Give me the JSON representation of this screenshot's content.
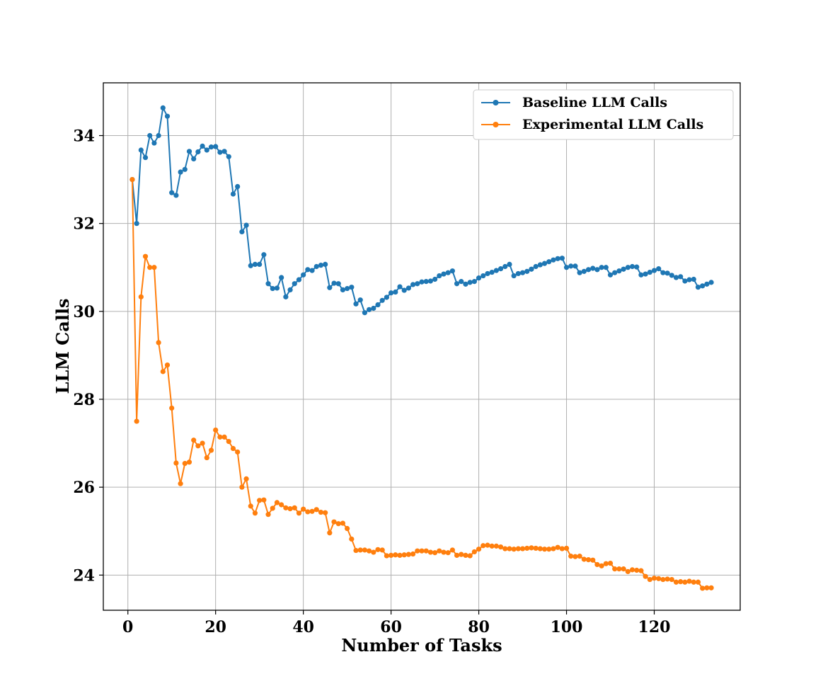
{
  "chart_data": {
    "type": "line",
    "title": "",
    "xlabel": "Number of Tasks",
    "ylabel": "LLM Calls",
    "xlim": [
      -5.6,
      139.6
    ],
    "ylim": [
      23.2,
      35.2
    ],
    "xticks": [
      0,
      20,
      40,
      60,
      80,
      100,
      120
    ],
    "yticks": [
      24,
      26,
      28,
      30,
      32,
      34
    ],
    "xtick_labels": [
      "0",
      "20",
      "40",
      "60",
      "80",
      "100",
      "120"
    ],
    "ytick_labels": [
      "24",
      "26",
      "28",
      "30",
      "32",
      "34"
    ],
    "grid": true,
    "legend_position": "top-right",
    "series": [
      {
        "name": "Baseline LLM Calls",
        "color": "#1f77b4",
        "x": [
          1,
          2,
          3,
          4,
          5,
          6,
          7,
          8,
          9,
          10,
          11,
          12,
          13,
          14,
          15,
          16,
          17,
          18,
          19,
          20,
          21,
          22,
          23,
          24,
          25,
          26,
          27,
          28,
          29,
          30,
          31,
          32,
          33,
          34,
          35,
          36,
          37,
          38,
          39,
          40,
          41,
          42,
          43,
          44,
          45,
          46,
          47,
          48,
          49,
          50,
          51,
          52,
          53,
          54,
          55,
          56,
          57,
          58,
          59,
          60,
          61,
          62,
          63,
          64,
          65,
          66,
          67,
          68,
          69,
          70,
          71,
          72,
          73,
          74,
          75,
          76,
          77,
          78,
          79,
          80,
          81,
          82,
          83,
          84,
          85,
          86,
          87,
          88,
          89,
          90,
          91,
          92,
          93,
          94,
          95,
          96,
          97,
          98,
          99,
          100,
          101,
          102,
          103,
          104,
          105,
          106,
          107,
          108,
          109,
          110,
          111,
          112,
          113,
          114,
          115,
          116,
          117,
          118,
          119,
          120,
          121,
          122,
          123,
          124,
          125,
          126,
          127,
          128,
          129,
          130,
          131,
          132,
          133
        ],
        "values": [
          33.0,
          32.0,
          33.67,
          33.5,
          34.0,
          33.83,
          34.0,
          34.63,
          34.44,
          32.7,
          32.64,
          33.17,
          33.23,
          33.64,
          33.47,
          33.63,
          33.76,
          33.67,
          33.74,
          33.75,
          33.62,
          33.64,
          33.52,
          32.67,
          32.84,
          31.81,
          31.96,
          31.04,
          31.07,
          31.07,
          31.29,
          30.63,
          30.52,
          30.53,
          30.77,
          30.33,
          30.49,
          30.63,
          30.72,
          30.83,
          30.95,
          30.93,
          31.02,
          31.05,
          31.07,
          30.54,
          30.64,
          30.63,
          30.49,
          30.52,
          30.55,
          30.17,
          30.26,
          29.97,
          30.04,
          30.07,
          30.15,
          30.25,
          30.32,
          30.42,
          30.44,
          30.56,
          30.48,
          30.53,
          30.61,
          30.63,
          30.67,
          30.68,
          30.69,
          30.73,
          30.81,
          30.85,
          30.88,
          30.92,
          30.63,
          30.68,
          30.62,
          30.66,
          30.68,
          30.76,
          30.81,
          30.86,
          30.89,
          30.93,
          30.97,
          31.02,
          31.07,
          30.81,
          30.86,
          30.88,
          30.91,
          30.96,
          31.02,
          31.06,
          31.09,
          31.13,
          31.17,
          31.2,
          31.21,
          31.0,
          31.03,
          31.03,
          30.88,
          30.91,
          30.95,
          30.98,
          30.95,
          31.0,
          31.0,
          30.83,
          30.88,
          30.92,
          30.96,
          31.0,
          31.02,
          31.01,
          30.83,
          30.85,
          30.89,
          30.93,
          30.97,
          30.88,
          30.87,
          30.82,
          30.77,
          30.79,
          30.69,
          30.72,
          30.73,
          30.55,
          30.58,
          30.62,
          30.66
        ]
      },
      {
        "name": "Experimental LLM Calls",
        "color": "#ff7f0e",
        "x": [
          1,
          2,
          3,
          4,
          5,
          6,
          7,
          8,
          9,
          10,
          11,
          12,
          13,
          14,
          15,
          16,
          17,
          18,
          19,
          20,
          21,
          22,
          23,
          24,
          25,
          26,
          27,
          28,
          29,
          30,
          31,
          32,
          33,
          34,
          35,
          36,
          37,
          38,
          39,
          40,
          41,
          42,
          43,
          44,
          45,
          46,
          47,
          48,
          49,
          50,
          51,
          52,
          53,
          54,
          55,
          56,
          57,
          58,
          59,
          60,
          61,
          62,
          63,
          64,
          65,
          66,
          67,
          68,
          69,
          70,
          71,
          72,
          73,
          74,
          75,
          76,
          77,
          78,
          79,
          80,
          81,
          82,
          83,
          84,
          85,
          86,
          87,
          88,
          89,
          90,
          91,
          92,
          93,
          94,
          95,
          96,
          97,
          98,
          99,
          100,
          101,
          102,
          103,
          104,
          105,
          106,
          107,
          108,
          109,
          110,
          111,
          112,
          113,
          114,
          115,
          116,
          117,
          118,
          119,
          120,
          121,
          122,
          123,
          124,
          125,
          126,
          127,
          128,
          129,
          130,
          131,
          132,
          133
        ],
        "values": [
          33.0,
          27.5,
          30.33,
          31.25,
          31.0,
          31.0,
          29.29,
          28.63,
          28.78,
          27.8,
          26.55,
          26.08,
          26.54,
          26.57,
          27.07,
          26.94,
          27.0,
          26.67,
          26.84,
          27.3,
          27.14,
          27.14,
          27.04,
          26.88,
          26.8,
          26.0,
          26.19,
          25.57,
          25.41,
          25.7,
          25.71,
          25.38,
          25.52,
          25.65,
          25.6,
          25.53,
          25.51,
          25.53,
          25.41,
          25.5,
          25.44,
          25.45,
          25.49,
          25.43,
          25.42,
          24.96,
          25.21,
          25.17,
          25.18,
          25.06,
          24.82,
          24.56,
          24.57,
          24.57,
          24.55,
          24.52,
          24.58,
          24.57,
          24.44,
          24.45,
          24.46,
          24.45,
          24.46,
          24.47,
          24.48,
          24.55,
          24.55,
          24.55,
          24.52,
          24.51,
          24.55,
          24.52,
          24.51,
          24.57,
          24.45,
          24.47,
          24.45,
          24.44,
          24.53,
          24.59,
          24.67,
          24.68,
          24.66,
          24.66,
          24.64,
          24.6,
          24.6,
          24.59,
          24.6,
          24.6,
          24.61,
          24.62,
          24.61,
          24.6,
          24.59,
          24.59,
          24.6,
          24.63,
          24.6,
          24.61,
          24.43,
          24.42,
          24.43,
          24.36,
          24.35,
          24.34,
          24.24,
          24.21,
          24.26,
          24.27,
          24.14,
          24.14,
          24.14,
          24.08,
          24.12,
          24.11,
          24.1,
          23.97,
          23.9,
          23.93,
          23.92,
          23.9,
          23.91,
          23.9,
          23.84,
          23.85,
          23.84,
          23.86,
          23.84,
          23.84,
          23.7,
          23.71,
          23.71
        ]
      }
    ]
  }
}
